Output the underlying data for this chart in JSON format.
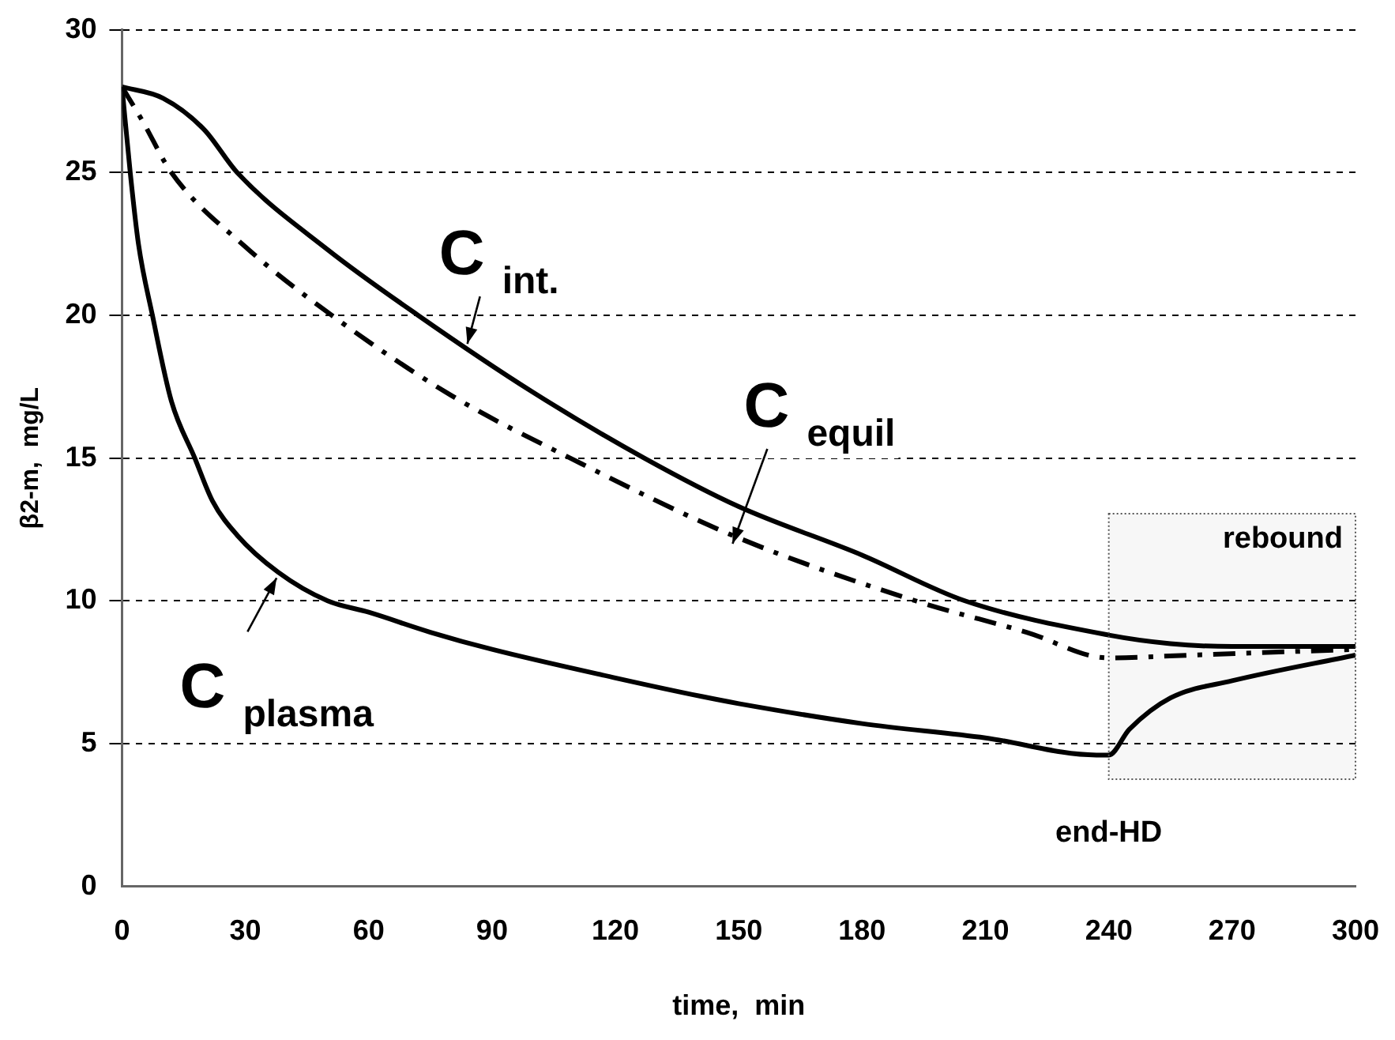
{
  "chart_data": {
    "type": "line",
    "xlabel": "time,  min",
    "ylabel": "β2-m,  mg/L",
    "xlim": [
      0,
      300
    ],
    "xticks": [
      0,
      30,
      60,
      90,
      120,
      150,
      180,
      210,
      240,
      270,
      300
    ],
    "ylim": [
      0,
      30
    ],
    "yticks": [
      0,
      5,
      10,
      15,
      20,
      25,
      30
    ],
    "grid": "y",
    "legend": false,
    "marker": "none",
    "series": [
      {
        "color": "#000000",
        "line_style": "solid",
        "x": [
          0,
          10,
          20,
          28,
          50,
          72,
          100,
          127,
          150,
          180,
          205,
          240,
          255,
          270,
          300
        ],
        "values": [
          28,
          27.6,
          26.5,
          25,
          22.3,
          20,
          17.3,
          15,
          13.3,
          11.6,
          10,
          8.8,
          8.5,
          8.4,
          8.4
        ]
      },
      {
        "color": "#000000",
        "line_style": "dashed",
        "x": [
          0,
          5,
          12,
          30,
          51,
          80,
          109,
          150,
          193,
          220,
          240,
          260,
          300
        ],
        "values": [
          28,
          26.8,
          25,
          22.4,
          20,
          17.2,
          15,
          12.2,
          10,
          8.9,
          8.0,
          8.1,
          8.3
        ]
      },
      {
        "color": "#000000",
        "line_style": "solid",
        "x": [
          0,
          2,
          4,
          7.4,
          12,
          17.7,
          22,
          28,
          38,
          50,
          60,
          75,
          90,
          120,
          141,
          150,
          180,
          210,
          237,
          240,
          245,
          255,
          270,
          300
        ],
        "values": [
          28,
          25,
          22.5,
          20,
          17,
          15,
          13.5,
          12.3,
          11,
          10,
          9.6,
          8.9,
          8.3,
          7.3,
          6.65,
          6.4,
          5.7,
          5.2,
          4.6,
          4.6,
          5.5,
          6.6,
          7.2,
          8.1
        ]
      }
    ],
    "annotations": [
      {
        "text": "C $_{int.}$",
        "x": 84,
        "y": 19
      },
      {
        "text": "C $_{equil}$",
        "x": 148.5,
        "y": 12
      },
      {
        "text": "C $_{plasma}$",
        "x": 37.6,
        "y": 10.8
      },
      {
        "text": "end-HD",
        "x": 240,
        "y": 4.6
      }
    ],
    "bands": [
      {
        "axis": "x",
        "from": 240,
        "to": 300,
        "label": "rebound"
      }
    ]
  }
}
